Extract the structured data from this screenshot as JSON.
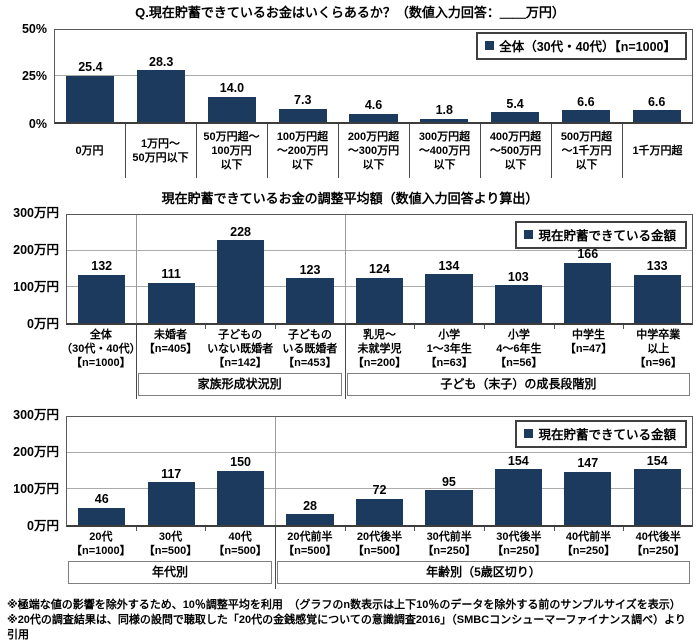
{
  "colors": {
    "bar": "#1C3A5E",
    "gridline": "#ABABAB",
    "plot_border": "#5A5A5A",
    "group_border": "#7F7F7F"
  },
  "footnotes": [
    "※極端な値の影響を除外するため、10％調整平均を利用　（グラフのn数表示は上下10％のデータを除外する前のサンプルサイズを表示）",
    "※20代の調査結果は、同様の設問で聴取した「20代の金銭感覚についての意識調査2016」（SMBCコンシューマーファイナンス調べ）より引用"
  ],
  "chart_data": [
    {
      "type": "bar",
      "title": "Q.現在貯蓄できているお金はいくらあるか？（数値入力回答：＿＿万円）",
      "legend": "全体（30代・40代）【n=1000】",
      "legend_position": "top-right",
      "unit": "%",
      "grid": "horizontal",
      "ylim": [
        0,
        50
      ],
      "yticks": [
        {
          "value": 0,
          "label": "0%"
        },
        {
          "value": 25,
          "label": "25%"
        },
        {
          "value": 50,
          "label": "50%"
        }
      ],
      "categories": [
        [
          "0万円"
        ],
        [
          "1万円～",
          "50万円以下"
        ],
        [
          "50万円超～",
          "100万円",
          "以下"
        ],
        [
          "100万円超",
          "～200万円",
          "以下"
        ],
        [
          "200万円超",
          "～300万円",
          "以下"
        ],
        [
          "300万円超",
          "～400万円",
          "以下"
        ],
        [
          "400万円超",
          "～500万円",
          "以下"
        ],
        [
          "500万円超",
          "～1千万円",
          "以下"
        ],
        [
          "1千万円超"
        ]
      ],
      "values": [
        25.4,
        28.3,
        14.0,
        7.3,
        4.6,
        1.8,
        5.4,
        6.6,
        6.6
      ],
      "value_labels": [
        "25.4",
        "28.3",
        "14.0",
        "7.3",
        "4.6",
        "1.8",
        "5.4",
        "6.6",
        "6.6"
      ],
      "plot_dividers": [],
      "label_dividers": [
        1,
        2,
        3,
        4,
        5,
        6,
        7,
        8
      ],
      "column_ticks": false,
      "groups": []
    },
    {
      "type": "bar",
      "title": "現在貯蓄できているお金の調整平均額（数値入力回答より算出）",
      "legend": "現在貯蓄できている金額",
      "legend_position": "top-right",
      "unit": "万円",
      "grid": "horizontal",
      "ylim": [
        0,
        300
      ],
      "yticks": [
        {
          "value": 0,
          "label": "0万円"
        },
        {
          "value": 100,
          "label": "100万円"
        },
        {
          "value": 200,
          "label": "200万円"
        },
        {
          "value": 300,
          "label": "300万円"
        }
      ],
      "categories": [
        [
          "全体",
          "（30代・40代）",
          "【n=1000】"
        ],
        [
          "未婚者",
          "【n=405】"
        ],
        [
          "子どもの",
          "いない既婚者",
          "【n=142】"
        ],
        [
          "子どもの",
          "いる既婚者",
          "【n=453】"
        ],
        [
          "乳児～",
          "未就学児",
          "【n=200】"
        ],
        [
          "小学",
          "1～3年生",
          "【n=63】"
        ],
        [
          "小学",
          "4～6年生",
          "【n=56】"
        ],
        [
          "中学生",
          "【n=47】"
        ],
        [
          "中学卒業",
          "以上",
          "【n=96】"
        ]
      ],
      "values": [
        132,
        111,
        228,
        123,
        124,
        134,
        103,
        166,
        133
      ],
      "value_labels": [
        "132",
        "111",
        "228",
        "123",
        "124",
        "134",
        "103",
        "166",
        "133"
      ],
      "plot_dividers": [
        1,
        4
      ],
      "label_dividers": [
        1,
        4
      ],
      "column_ticks": true,
      "groups": [
        {
          "label": "家族形成状況別",
          "start": 1,
          "span": 3
        },
        {
          "label": "子ども（末子）の成長段階別",
          "start": 4,
          "span": 5
        }
      ]
    },
    {
      "type": "bar",
      "title": "",
      "legend": "現在貯蓄できている金額",
      "legend_position": "top-right",
      "unit": "万円",
      "grid": "horizontal",
      "ylim": [
        0,
        300
      ],
      "yticks": [
        {
          "value": 0,
          "label": "0万円"
        },
        {
          "value": 100,
          "label": "100万円"
        },
        {
          "value": 200,
          "label": "200万円"
        },
        {
          "value": 300,
          "label": "300万円"
        }
      ],
      "categories": [
        [
          "20代",
          "【n=1000】"
        ],
        [
          "30代",
          "【n=500】"
        ],
        [
          "40代",
          "【n=500】"
        ],
        [
          "20代前半",
          "【n=500】"
        ],
        [
          "20代後半",
          "【n=500】"
        ],
        [
          "30代前半",
          "【n=250】"
        ],
        [
          "30代後半",
          "【n=250】"
        ],
        [
          "40代前半",
          "【n=250】"
        ],
        [
          "40代後半",
          "【n=250】"
        ]
      ],
      "values": [
        46,
        117,
        150,
        28,
        72,
        95,
        154,
        147,
        154
      ],
      "value_labels": [
        "46",
        "117",
        "150",
        "28",
        "72",
        "95",
        "154",
        "147",
        "154"
      ],
      "plot_dividers": [
        3
      ],
      "label_dividers": [
        3
      ],
      "column_ticks": true,
      "groups": [
        {
          "label": "年代別",
          "start": 0,
          "span": 3
        },
        {
          "label": "年齢別（5歳区切り）",
          "start": 3,
          "span": 6
        }
      ]
    }
  ]
}
